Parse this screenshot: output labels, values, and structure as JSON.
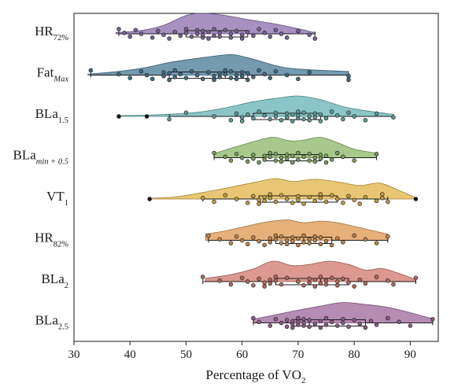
{
  "chart_data": {
    "type": "raincloud",
    "orientation": "horizontal",
    "xlabel": "Percentage of VO",
    "xlabel_sub": "2",
    "xlim": [
      30,
      95
    ],
    "xticks": [
      30,
      40,
      50,
      60,
      70,
      80,
      90
    ],
    "grid": false,
    "legend": "none",
    "categories": [
      {
        "base": "HR",
        "sub": "72%",
        "sub_italic": false,
        "color": "#8d72ae",
        "min": 38,
        "q1": 50,
        "median": 56,
        "q3": 61,
        "max": 73,
        "outliers": [],
        "density": [
          [
            37.5,
            0.06
          ],
          [
            42,
            0.16
          ],
          [
            46,
            0.42
          ],
          [
            50,
            0.9
          ],
          [
            53,
            1.0
          ],
          [
            57,
            0.9
          ],
          [
            61,
            0.7
          ],
          [
            66,
            0.48
          ],
          [
            70,
            0.25
          ],
          [
            73,
            0.06
          ]
        ],
        "points": [
          38,
          39,
          40,
          41,
          42,
          44,
          45,
          46,
          47,
          48,
          49,
          50,
          50,
          51,
          52,
          52,
          53,
          53,
          53,
          54,
          54,
          55,
          55,
          56,
          56,
          57,
          58,
          58,
          59,
          60,
          60,
          61,
          62,
          63,
          64,
          65,
          66,
          67,
          68,
          70,
          72,
          73
        ]
      },
      {
        "base": "Fat",
        "sub": "Max",
        "sub_italic": true,
        "color": "#4d7d9a",
        "min": 33,
        "q1": 47,
        "median": 57,
        "q3": 61,
        "max": 79,
        "outliers": [],
        "density": [
          [
            32.5,
            0.05
          ],
          [
            38,
            0.18
          ],
          [
            43,
            0.38
          ],
          [
            47,
            0.62
          ],
          [
            52,
            0.82
          ],
          [
            56,
            0.96
          ],
          [
            58.5,
            1.0
          ],
          [
            62,
            0.78
          ],
          [
            67,
            0.4
          ],
          [
            72,
            0.26
          ],
          [
            79,
            0.18
          ]
        ],
        "points": [
          33,
          38,
          40,
          42,
          43,
          44,
          46,
          46,
          47,
          47,
          48,
          48,
          49,
          50,
          51,
          52,
          53,
          54,
          55,
          55,
          56,
          56,
          57,
          57,
          58,
          58,
          59,
          59,
          60,
          60,
          61,
          61,
          62,
          63,
          64,
          65,
          66,
          68,
          70,
          72,
          79,
          79
        ]
      },
      {
        "base": "BLa",
        "sub": "1.5",
        "sub_italic": false,
        "color": "#6bb5b5",
        "min": 47,
        "q1": 62,
        "median": 70,
        "q3": 74,
        "max": 87,
        "outliers": [
          38,
          43
        ],
        "density": [
          [
            38,
            0.04
          ],
          [
            45,
            0.08
          ],
          [
            52,
            0.2
          ],
          [
            57,
            0.42
          ],
          [
            62,
            0.72
          ],
          [
            66,
            0.88
          ],
          [
            70,
            1.0
          ],
          [
            74,
            0.82
          ],
          [
            78,
            0.48
          ],
          [
            82,
            0.28
          ],
          [
            87,
            0.1
          ]
        ],
        "points": [
          38,
          43,
          47,
          50,
          55,
          58,
          59,
          60,
          60,
          61,
          62,
          63,
          64,
          65,
          66,
          66,
          67,
          68,
          68,
          69,
          69,
          70,
          70,
          70,
          71,
          71,
          72,
          72,
          73,
          73,
          74,
          74,
          75,
          76,
          77,
          78,
          79,
          80,
          82,
          84,
          87
        ]
      },
      {
        "base": "BLa",
        "sub": "min + 0.5",
        "sub_italic": true,
        "color": "#8fb86b",
        "min": 55,
        "q1": 64,
        "median": 68,
        "q3": 74,
        "max": 84,
        "outliers": [],
        "density": [
          [
            55,
            0.2
          ],
          [
            58,
            0.46
          ],
          [
            62,
            0.78
          ],
          [
            65.5,
            1.0
          ],
          [
            68.5,
            0.82
          ],
          [
            71,
            0.86
          ],
          [
            74,
            1.0
          ],
          [
            77,
            0.74
          ],
          [
            80,
            0.42
          ],
          [
            84,
            0.22
          ]
        ],
        "points": [
          55,
          57,
          58,
          59,
          60,
          61,
          62,
          62,
          63,
          64,
          64,
          65,
          65,
          66,
          66,
          67,
          67,
          68,
          68,
          69,
          69,
          70,
          70,
          71,
          72,
          72,
          73,
          73,
          74,
          74,
          75,
          75,
          76,
          77,
          78,
          80,
          84
        ]
      },
      {
        "base": "VT",
        "sub": "1",
        "sub_italic": false,
        "color": "#e3b64b",
        "min": 53,
        "q1": 63,
        "median": 70,
        "q3": 77,
        "max": 86,
        "outliers": [
          43.5,
          91
        ],
        "density": [
          [
            43.5,
            0.04
          ],
          [
            48,
            0.1
          ],
          [
            53,
            0.32
          ],
          [
            58,
            0.58
          ],
          [
            62,
            0.8
          ],
          [
            66,
            1.0
          ],
          [
            69,
            0.86
          ],
          [
            73,
            0.96
          ],
          [
            77,
            0.84
          ],
          [
            81,
            0.66
          ],
          [
            84.5,
            0.78
          ],
          [
            88,
            0.42
          ],
          [
            91,
            0.06
          ]
        ],
        "points": [
          43.5,
          53,
          55,
          57,
          59,
          61,
          62,
          63,
          63,
          64,
          64,
          65,
          65,
          66,
          67,
          68,
          69,
          70,
          70,
          71,
          72,
          73,
          74,
          74,
          75,
          76,
          77,
          78,
          79,
          80,
          81,
          82,
          84,
          85,
          85,
          86,
          91
        ]
      },
      {
        "base": "HR",
        "sub": "82%",
        "sub_italic": false,
        "color": "#df9a55",
        "min": 54,
        "q1": 66,
        "median": 71,
        "q3": 76,
        "max": 86,
        "outliers": [],
        "density": [
          [
            53.5,
            0.3
          ],
          [
            57,
            0.46
          ],
          [
            61,
            0.7
          ],
          [
            64,
            0.88
          ],
          [
            68,
            1.0
          ],
          [
            71,
            0.86
          ],
          [
            74,
            0.94
          ],
          [
            77,
            0.86
          ],
          [
            81,
            0.62
          ],
          [
            86,
            0.3
          ]
        ],
        "points": [
          54,
          56,
          58,
          59,
          60,
          61,
          62,
          63,
          64,
          65,
          65,
          66,
          66,
          67,
          67,
          68,
          68,
          69,
          69,
          70,
          70,
          71,
          71,
          72,
          72,
          73,
          73,
          74,
          74,
          75,
          76,
          77,
          78,
          80,
          82,
          84,
          86
        ]
      },
      {
        "base": "BLa",
        "sub": "2",
        "sub_italic": false,
        "color": "#d17c72",
        "min": 53,
        "q1": 66,
        "median": 74,
        "q3": 79,
        "max": 91,
        "outliers": [],
        "density": [
          [
            53.5,
            0.16
          ],
          [
            58,
            0.34
          ],
          [
            62,
            0.62
          ],
          [
            65.5,
            1.0
          ],
          [
            69,
            0.78
          ],
          [
            72,
            0.84
          ],
          [
            75.5,
            1.0
          ],
          [
            79,
            0.84
          ],
          [
            82,
            0.56
          ],
          [
            85,
            0.64
          ],
          [
            88,
            0.4
          ],
          [
            91,
            0.1
          ]
        ],
        "points": [
          53,
          56,
          58,
          60,
          61,
          62,
          63,
          64,
          64,
          65,
          65,
          66,
          66,
          67,
          68,
          70,
          71,
          72,
          72,
          73,
          73,
          74,
          74,
          75,
          75,
          76,
          77,
          77,
          78,
          79,
          80,
          81,
          82,
          84,
          86,
          87,
          91
        ]
      },
      {
        "base": "BLa",
        "sub": "2.5",
        "sub_italic": false,
        "color": "#a26c9e",
        "min": 62,
        "q1": 69,
        "median": 72,
        "q3": 82,
        "max": 94,
        "outliers": [],
        "density": [
          [
            62,
            0.18
          ],
          [
            66,
            0.4
          ],
          [
            70,
            0.62
          ],
          [
            74,
            0.82
          ],
          [
            78,
            1.0
          ],
          [
            82,
            0.9
          ],
          [
            86,
            0.76
          ],
          [
            90,
            0.5
          ],
          [
            94,
            0.2
          ]
        ],
        "points": [
          62,
          63,
          65,
          66,
          67,
          68,
          68,
          69,
          69,
          69,
          70,
          70,
          70,
          71,
          71,
          71,
          72,
          72,
          73,
          74,
          74,
          75,
          75,
          76,
          77,
          78,
          78,
          79,
          80,
          81,
          82,
          83,
          84,
          86,
          88,
          90,
          94
        ]
      }
    ]
  }
}
